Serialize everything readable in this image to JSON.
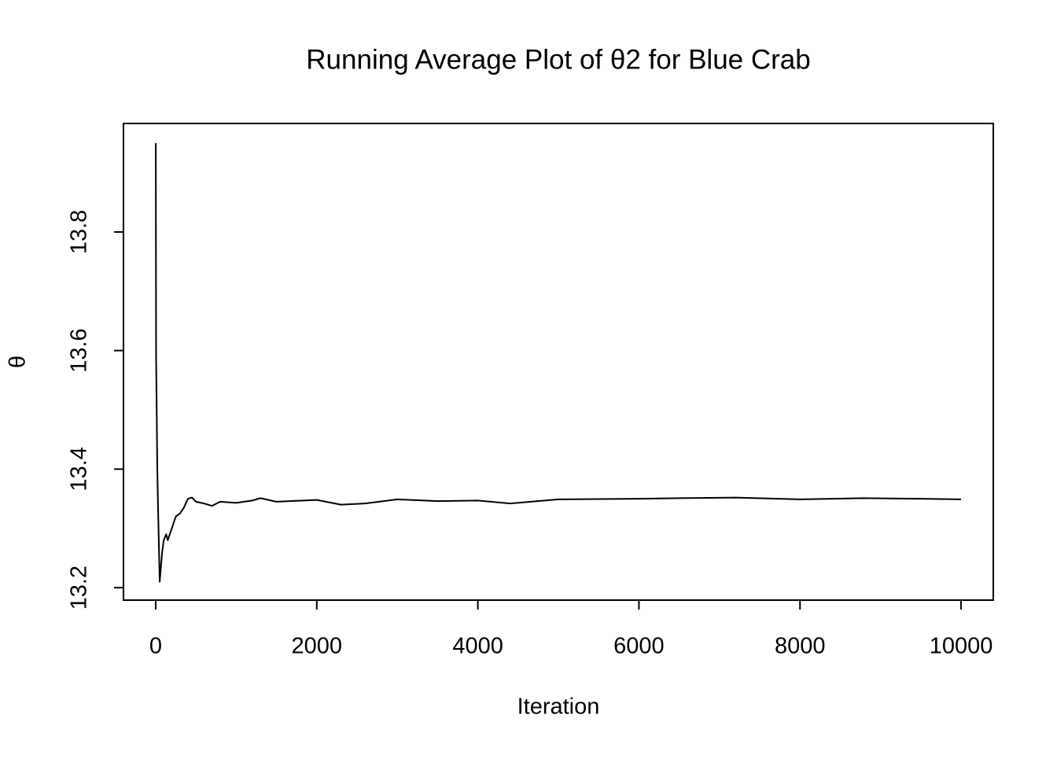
{
  "chart_data": {
    "type": "line",
    "title": "Running Average Plot of θ2 for Blue Crab",
    "x_label": "Iteration",
    "y_label": "θ",
    "x": [
      1,
      5,
      10,
      20,
      30,
      50,
      80,
      100,
      130,
      150,
      200,
      250,
      300,
      350,
      400,
      450,
      500,
      600,
      700,
      800,
      1000,
      1200,
      1300,
      1500,
      2000,
      2300,
      2600,
      3000,
      3500,
      4000,
      4400,
      5000,
      6000,
      6500,
      7200,
      8000,
      8800,
      9500,
      10000
    ],
    "series": [
      {
        "name": "θ2",
        "color": "#000000",
        "values": [
          13.95,
          13.59,
          13.53,
          13.4,
          13.33,
          13.21,
          13.26,
          13.28,
          13.29,
          13.28,
          13.3,
          13.32,
          13.325,
          13.335,
          13.35,
          13.352,
          13.345,
          13.342,
          13.338,
          13.345,
          13.343,
          13.347,
          13.351,
          13.345,
          13.348,
          13.34,
          13.342,
          13.349,
          13.346,
          13.347,
          13.342,
          13.349,
          13.35,
          13.351,
          13.352,
          13.349,
          13.351,
          13.35,
          13.349
        ]
      }
    ],
    "xlim": [
      -400,
      10400
    ],
    "ylim": [
      13.179,
      13.983
    ],
    "xticks": [
      0,
      2000,
      4000,
      6000,
      8000,
      10000
    ],
    "yticks": [
      13.2,
      13.4,
      13.6,
      13.8
    ]
  }
}
